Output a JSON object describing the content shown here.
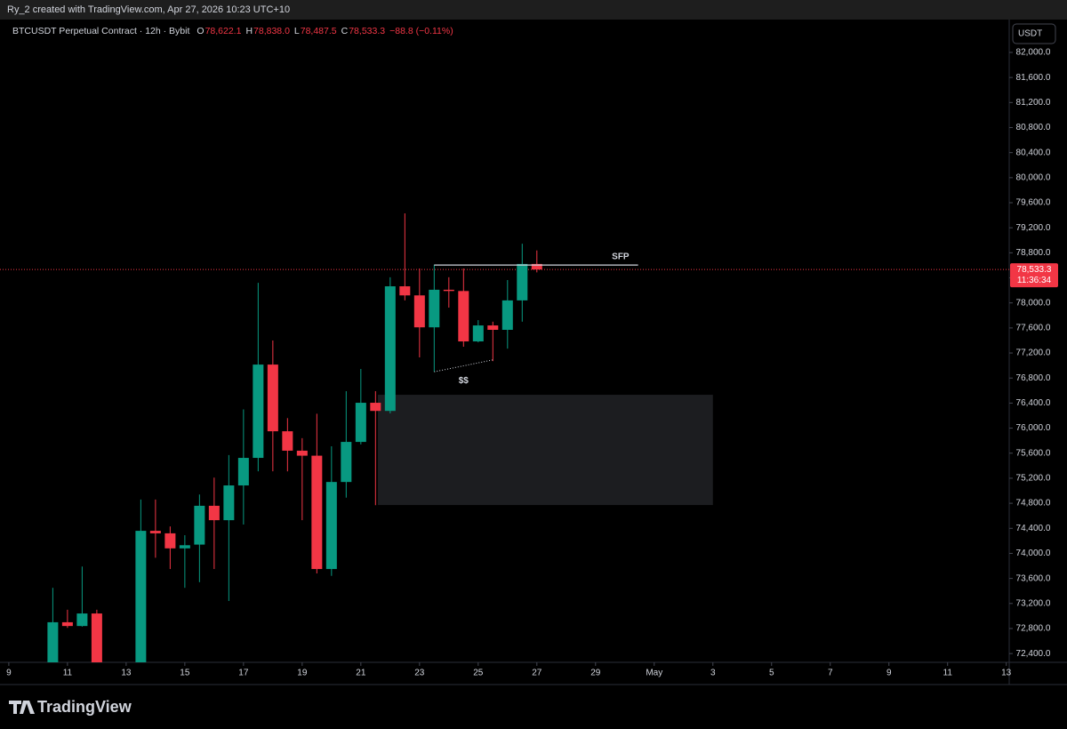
{
  "header": {
    "attribution": "Ry_2 created with TradingView.com, Apr 27, 2026 10:23 UTC+10"
  },
  "footer": {
    "brand": "TradingView"
  },
  "chart_data": {
    "type": "candlestick",
    "title": "BTCUSDT Perpetual Contract · 12h · Bybit",
    "ohlc_legend": [
      {
        "label": "O",
        "value": "78,622.1"
      },
      {
        "label": "H",
        "value": "78,838.0"
      },
      {
        "label": "L",
        "value": "78,487.5"
      },
      {
        "label": "C",
        "value": "78,533.3"
      }
    ],
    "change": "−88.8 (−0.11%)",
    "currency": "USDT",
    "up_color": "#089981",
    "down_color": "#f23645",
    "x": [
      10.5,
      11,
      11.5,
      12,
      13.5,
      14,
      14.5,
      15,
      15.5,
      16,
      16.5,
      17,
      17.5,
      18,
      18.5,
      19,
      19.5,
      20,
      20.5,
      21,
      21.5,
      22,
      22.5,
      23,
      23.5,
      24,
      24.5,
      25,
      25.5,
      26,
      26.5,
      27
    ],
    "open": [
      72150,
      72900,
      72840,
      73040,
      72200,
      74360,
      74320,
      74080,
      74140,
      74760,
      74530,
      75085,
      75525,
      77015,
      75950,
      75640,
      75560,
      73750,
      75140,
      75780,
      76405,
      76275,
      78265,
      78120,
      77610,
      78210,
      78190,
      77385,
      77640,
      77570,
      78040,
      78622.1
    ],
    "high": [
      73450,
      73100,
      73790,
      73100,
      74860,
      74860,
      74430,
      74290,
      74940,
      75210,
      75570,
      76300,
      78320,
      77400,
      76160,
      75840,
      76230,
      75710,
      76590,
      76945,
      76590,
      78410,
      79430,
      78550,
      78610,
      78410,
      78550,
      77725,
      77700,
      78365,
      78945,
      78838.0
    ],
    "low": [
      72100,
      72810,
      72830,
      72000,
      72050,
      73930,
      73750,
      73450,
      73540,
      73750,
      73240,
      74460,
      75310,
      75310,
      75310,
      74530,
      73680,
      73640,
      74890,
      75740,
      74770,
      76235,
      78040,
      77130,
      76900,
      77925,
      77300,
      77370,
      77070,
      77270,
      77700,
      78487.5
    ],
    "close": [
      72900,
      72840,
      73040,
      72150,
      74360,
      74320,
      74080,
      74130,
      74760,
      74530,
      75085,
      75525,
      77015,
      75950,
      75640,
      75560,
      73750,
      75140,
      75780,
      76405,
      76275,
      78265,
      78120,
      77610,
      78210,
      78190,
      77385,
      77640,
      77570,
      78040,
      78622.1,
      78533.3
    ],
    "xlim": [
      8.7,
      43.1
    ],
    "xticks": [
      9,
      11,
      13,
      15,
      17,
      19,
      21,
      23,
      25,
      27,
      29,
      {
        "value": 31,
        "label": "May"
      },
      {
        "value": 33,
        "label": "3"
      },
      {
        "value": 35,
        "label": "5"
      },
      {
        "value": 37,
        "label": "7"
      },
      {
        "value": 39,
        "label": "9"
      },
      {
        "value": 41,
        "label": "11"
      },
      {
        "value": 43,
        "label": "13"
      }
    ],
    "ylim": [
      72260,
      82525
    ],
    "yticks": [
      {
        "value": 72400,
        "label": "72,400.0"
      },
      {
        "value": 72800,
        "label": "72,800.0"
      },
      {
        "value": 73200,
        "label": "73,200.0"
      },
      {
        "value": 73600,
        "label": "73,600.0"
      },
      {
        "value": 74000,
        "label": "74,000.0"
      },
      {
        "value": 74400,
        "label": "74,400.0"
      },
      {
        "value": 74800,
        "label": "74,800.0"
      },
      {
        "value": 75200,
        "label": "75,200.0"
      },
      {
        "value": 75600,
        "label": "75,600.0"
      },
      {
        "value": 76000,
        "label": "76,000.0"
      },
      {
        "value": 76400,
        "label": "76,400.0"
      },
      {
        "value": 76800,
        "label": "76,800.0"
      },
      {
        "value": 77200,
        "label": "77,200.0"
      },
      {
        "value": 77600,
        "label": "77,600.0"
      },
      {
        "value": 78000,
        "label": "78,000.0"
      },
      {
        "value": 78400,
        "label": "78,400.0"
      },
      {
        "value": 78800,
        "label": "78,800.0"
      },
      {
        "value": 79200,
        "label": "79,200.0"
      },
      {
        "value": 79600,
        "label": "79,600.0"
      },
      {
        "value": 80000,
        "label": "80,000.0"
      },
      {
        "value": 80400,
        "label": "80,400.0"
      },
      {
        "value": 80800,
        "label": "80,800.0"
      },
      {
        "value": 81200,
        "label": "81,200.0"
      },
      {
        "value": 81600,
        "label": "81,600.0"
      },
      {
        "value": 82000,
        "label": "82,000.0"
      }
    ],
    "last_price": {
      "value": 78533.3,
      "label": "78,533.3",
      "countdown": "11:36:34"
    },
    "annotations": {
      "zone": {
        "x": [
          21.58,
          33.0
        ],
        "y": [
          76533,
          74772
        ]
      },
      "sfp": {
        "text": "SFP",
        "x": [
          23.5,
          30.45
        ],
        "y": 78605
      },
      "liquidity": {
        "text": "$$",
        "x": [
          23.5,
          25.5
        ],
        "y": [
          76900,
          77090
        ]
      }
    }
  }
}
